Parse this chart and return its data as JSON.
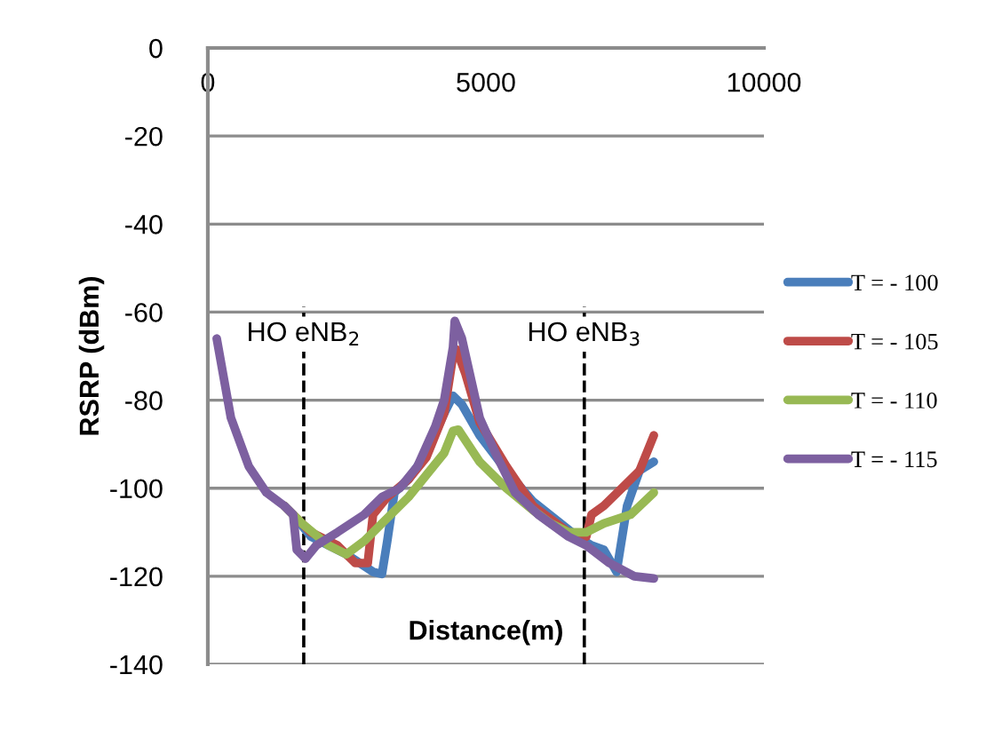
{
  "chart_data": {
    "type": "line",
    "xlabel": "Distance(m)",
    "ylabel": "RSRP (dBm)",
    "xlim": [
      0,
      10000
    ],
    "xticks": [
      0,
      5000,
      10000
    ],
    "ylim": [
      -140,
      0
    ],
    "yticks": [
      0,
      -20,
      -40,
      -60,
      -80,
      -100,
      -120,
      -140
    ],
    "grid": "y",
    "legend": "right",
    "line_style": "solid",
    "marker": "none",
    "ref_lines": [
      {
        "axis": "x",
        "value": 1725,
        "label": "HO eNB$_{2}$",
        "color": "#000000",
        "line_style": "dashed"
      },
      {
        "axis": "x",
        "value": 6770,
        "label": "HO eNB$_{3}$",
        "color": "#000000",
        "line_style": "dashed"
      }
    ],
    "series": [
      {
        "name": "T = - 100",
        "color": "#4a7ebb",
        "x": [
          1374,
          1534,
          1853,
          2492,
          2971,
          3131,
          3227,
          3355,
          3610,
          3930,
          4250,
          4409,
          4569,
          4888,
          5368,
          5847,
          6646,
          6900,
          7122,
          7350,
          7540,
          7764,
          8020
        ],
        "values": [
          -104,
          -106,
          -111,
          -115,
          -119,
          -119.5,
          -112,
          -101,
          -98,
          -92,
          -83,
          -79,
          -81,
          -88,
          -96,
          -103,
          -111,
          -113,
          -114,
          -119,
          -104,
          -96,
          -94
        ]
      },
      {
        "name": "T = - 105",
        "color": "#be4b48",
        "x": [
          1374,
          1534,
          1853,
          2332,
          2652,
          2876,
          2971,
          3227,
          3610,
          3930,
          4250,
          4409,
          4473,
          4633,
          4888,
          5368,
          5847,
          6486,
          6805,
          6900,
          7122,
          7444,
          7764,
          8020
        ],
        "values": [
          -104,
          -106,
          -110,
          -113,
          -117,
          -117,
          -106,
          -102,
          -98,
          -93,
          -83,
          -70,
          -68.5,
          -74,
          -85,
          -95,
          -104,
          -110,
          -111,
          -106,
          -104,
          -100,
          -96,
          -88
        ]
      },
      {
        "name": "T = - 110",
        "color": "#98b954",
        "x": [
          1374,
          1534,
          1694,
          2172,
          2492,
          2812,
          3131,
          3610,
          3930,
          4250,
          4409,
          4505,
          4888,
          5368,
          5847,
          6167,
          6486,
          6805,
          7122,
          7604,
          8020
        ],
        "values": [
          -104,
          -106,
          -108,
          -113,
          -115,
          -112,
          -108,
          -102,
          -97,
          -92,
          -87,
          -86.7,
          -94,
          -100,
          -105,
          -108,
          -110,
          -110,
          -108,
          -106,
          -101
        ]
      },
      {
        "name": "T = - 115",
        "color": "#7d60a0",
        "x": [
          160,
          415,
          735,
          1054,
          1374,
          1534,
          1600,
          1757,
          1950,
          2332,
          2812,
          3131,
          3450,
          3770,
          4090,
          4250,
          4409,
          4441,
          4569,
          4888,
          5208,
          5527,
          5943,
          6486,
          6805,
          7222,
          7668,
          8020
        ],
        "values": [
          -66,
          -84,
          -95,
          -101,
          -104,
          -106,
          -114,
          -116,
          -113,
          -110,
          -106,
          -102,
          -100,
          -95,
          -86,
          -80,
          -68,
          -62,
          -66,
          -84,
          -93,
          -101,
          -106,
          -111,
          -113,
          -117,
          -120,
          -120.5
        ]
      }
    ]
  }
}
